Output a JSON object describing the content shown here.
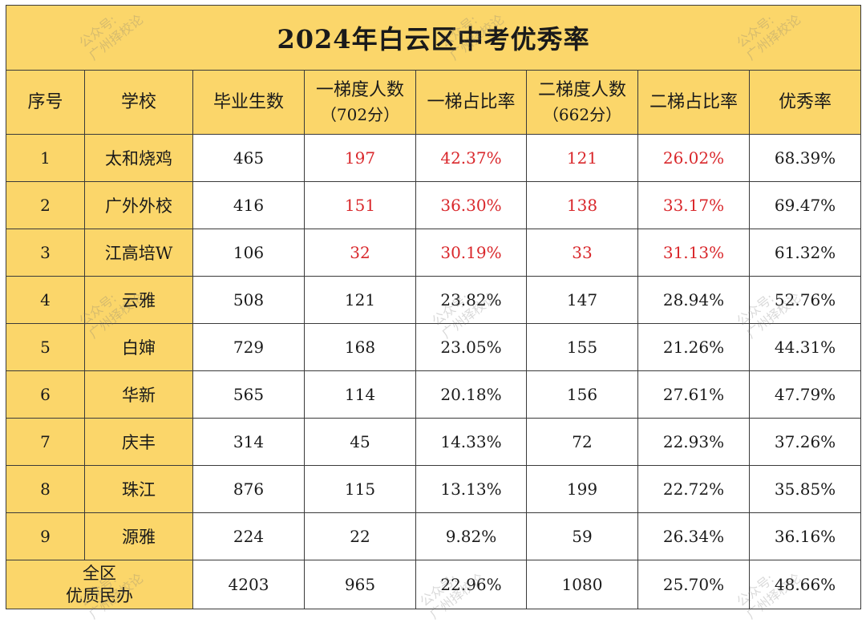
{
  "title": "2024年白云区中考优秀率",
  "headers": {
    "index": "序号",
    "school": "学校",
    "graduates": "毕业生数",
    "tier1_count": "一梯度人数",
    "tier1_sub": "（702分）",
    "tier1_ratio": "一梯占比率",
    "tier2_count": "二梯度人数",
    "tier2_sub": "（662分）",
    "tier2_ratio": "二梯占比率",
    "excellent_rate": "优秀率"
  },
  "rows": [
    {
      "index": "1",
      "school": "太和烧鸡",
      "graduates": "465",
      "tier1_count": "197",
      "tier1_ratio": "42.37%",
      "tier2_count": "121",
      "tier2_ratio": "26.02%",
      "excellent_rate": "68.39%"
    },
    {
      "index": "2",
      "school": "广外外校",
      "graduates": "416",
      "tier1_count": "151",
      "tier1_ratio": "36.30%",
      "tier2_count": "138",
      "tier2_ratio": "33.17%",
      "excellent_rate": "69.47%"
    },
    {
      "index": "3",
      "school": "江高培W",
      "graduates": "106",
      "tier1_count": "32",
      "tier1_ratio": "30.19%",
      "tier2_count": "33",
      "tier2_ratio": "31.13%",
      "excellent_rate": "61.32%"
    },
    {
      "index": "4",
      "school": "云雅",
      "graduates": "508",
      "tier1_count": "121",
      "tier1_ratio": "23.82%",
      "tier2_count": "147",
      "tier2_ratio": "28.94%",
      "excellent_rate": "52.76%"
    },
    {
      "index": "5",
      "school": "白婶",
      "graduates": "729",
      "tier1_count": "168",
      "tier1_ratio": "23.05%",
      "tier2_count": "155",
      "tier2_ratio": "21.26%",
      "excellent_rate": "44.31%"
    },
    {
      "index": "6",
      "school": "华新",
      "graduates": "565",
      "tier1_count": "114",
      "tier1_ratio": "20.18%",
      "tier2_count": "156",
      "tier2_ratio": "27.61%",
      "excellent_rate": "47.79%"
    },
    {
      "index": "7",
      "school": "庆丰",
      "graduates": "314",
      "tier1_count": "45",
      "tier1_ratio": "14.33%",
      "tier2_count": "72",
      "tier2_ratio": "22.93%",
      "excellent_rate": "37.26%"
    },
    {
      "index": "8",
      "school": "珠江",
      "graduates": "876",
      "tier1_count": "115",
      "tier1_ratio": "13.13%",
      "tier2_count": "199",
      "tier2_ratio": "22.72%",
      "excellent_rate": "35.85%"
    },
    {
      "index": "9",
      "school": "源雅",
      "graduates": "224",
      "tier1_count": "22",
      "tier1_ratio": "9.82%",
      "tier2_count": "59",
      "tier2_ratio": "26.34%",
      "excellent_rate": "36.16%"
    }
  ],
  "summary": {
    "label_line1": "全区",
    "label_line2": "优质民办",
    "graduates": "4203",
    "tier1_count": "965",
    "tier1_ratio": "22.96%",
    "tier2_count": "1080",
    "tier2_ratio": "25.70%",
    "excellent_rate": "48.66%"
  },
  "watermark": {
    "line1": "公众号:",
    "line2": "广州择校论"
  },
  "colors": {
    "header_bg": "#fbd66a",
    "highlight_text": "#d9272b",
    "border": "#3a3a3a"
  }
}
